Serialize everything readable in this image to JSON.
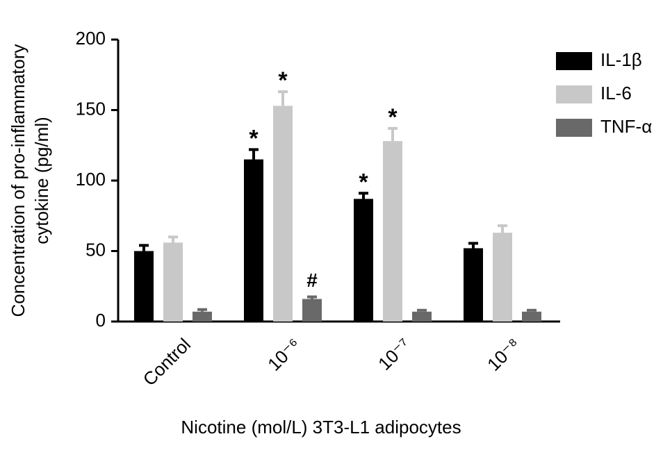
{
  "chart_data": {
    "type": "bar",
    "ylabel": [
      "Concentration of pro-inflammatory",
      "cytokine (pg/ml)"
    ],
    "xlabel": "Nicotine (mol/L) 3T3-L1 adipocytes",
    "categories": [
      "Control",
      "10⁻⁶",
      "10⁻⁷",
      "10⁻⁸"
    ],
    "series": [
      {
        "name": "IL-1β",
        "color": "#000000",
        "values": [
          50,
          115,
          87,
          52
        ],
        "errors": [
          4,
          7,
          4,
          3.5
        ],
        "annotations": [
          null,
          "*",
          "*",
          null
        ]
      },
      {
        "name": "IL-6",
        "color": "#c8c8c8",
        "values": [
          56,
          153,
          128,
          63
        ],
        "errors": [
          4,
          10,
          9,
          5
        ],
        "annotations": [
          null,
          "*",
          "*",
          null
        ]
      },
      {
        "name": "TNF-α",
        "color": "#696969",
        "values": [
          7,
          16,
          7,
          7
        ],
        "errors": [
          1.5,
          1.5,
          1,
          1
        ],
        "annotations": [
          null,
          "#",
          null,
          null
        ]
      }
    ],
    "ylim": [
      0,
      200
    ],
    "yticks": [
      0,
      50,
      100,
      150,
      200
    ]
  }
}
